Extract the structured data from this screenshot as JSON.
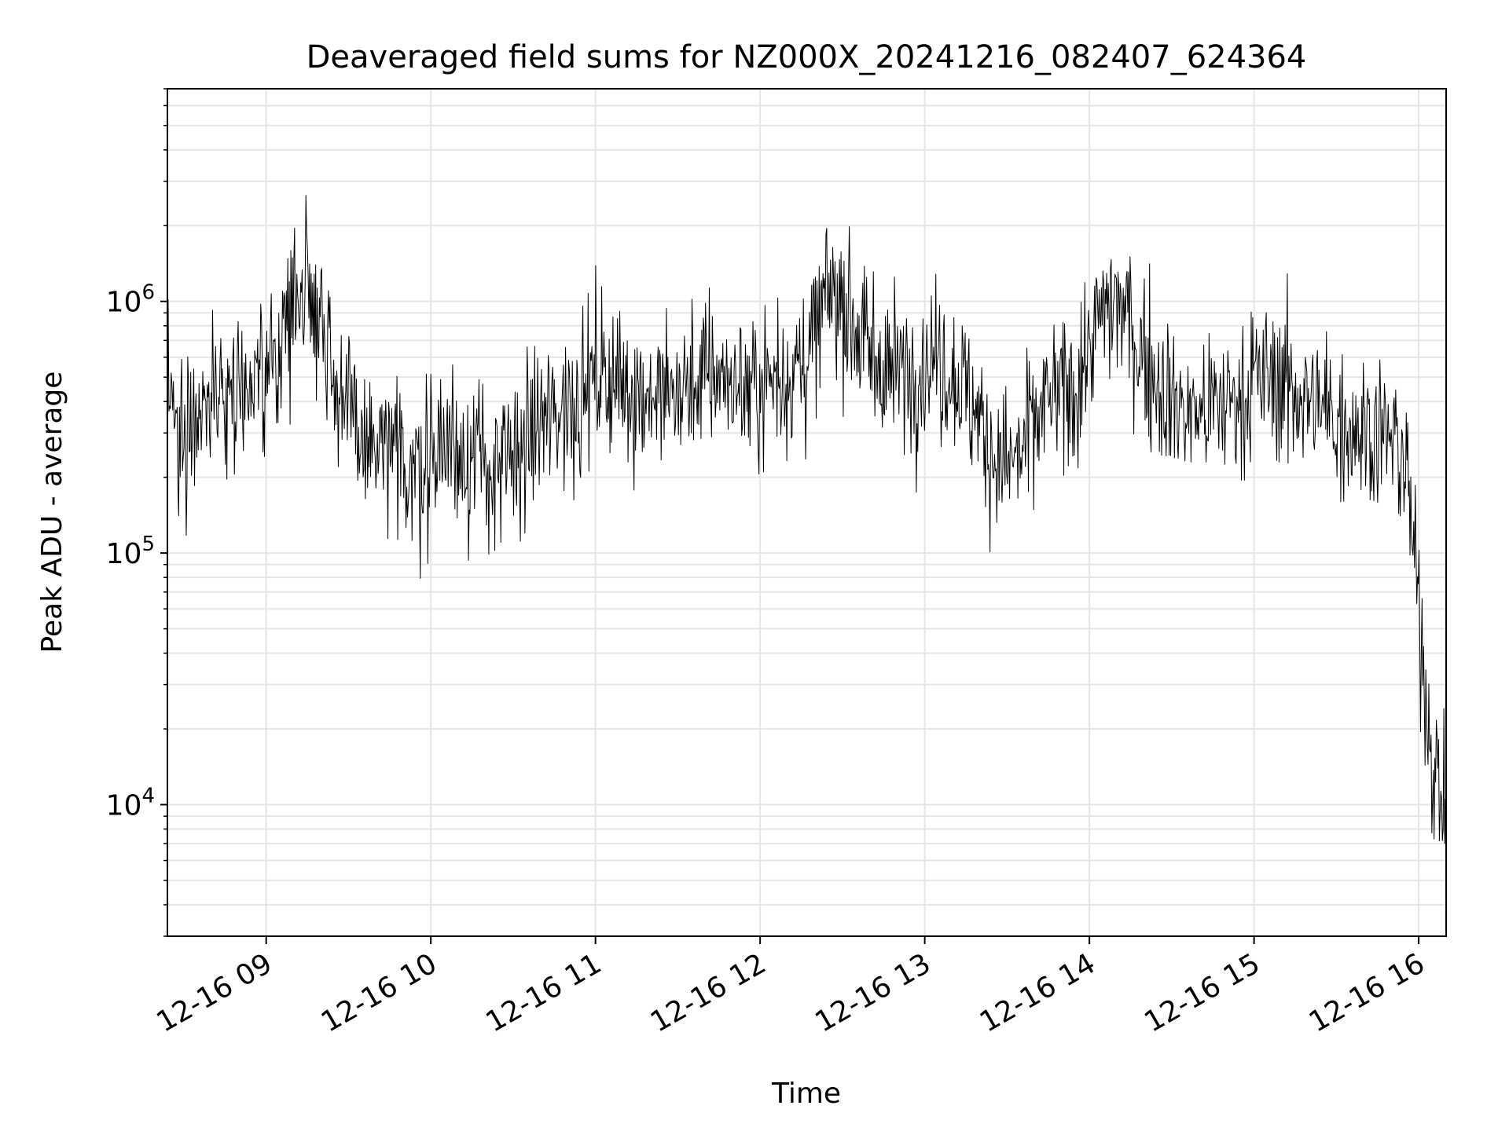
{
  "chart_data": {
    "type": "line",
    "title": "Deaveraged field sums for NZ000X_20241216_082407_624364",
    "xlabel": "Time",
    "ylabel": "Peak ADU - average",
    "yscale": "log",
    "ylim": [
      3000,
      7000000
    ],
    "xlim": [
      "2024-12-16 08:24",
      "2024-12-16 16:10"
    ],
    "grid": true,
    "line_color": "#000000",
    "grid_color": "#e6e6e6",
    "x_ticks": [
      {
        "value": "2024-12-16 09:00",
        "label": "12-16 09"
      },
      {
        "value": "2024-12-16 10:00",
        "label": "12-16 10"
      },
      {
        "value": "2024-12-16 11:00",
        "label": "12-16 11"
      },
      {
        "value": "2024-12-16 12:00",
        "label": "12-16 12"
      },
      {
        "value": "2024-12-16 13:00",
        "label": "12-16 13"
      },
      {
        "value": "2024-12-16 14:00",
        "label": "12-16 14"
      },
      {
        "value": "2024-12-16 15:00",
        "label": "12-16 15"
      },
      {
        "value": "2024-12-16 16:00",
        "label": "12-16 16"
      }
    ],
    "y_ticks": [
      {
        "value": 10000,
        "base": "10",
        "exp": "4"
      },
      {
        "value": 100000,
        "base": "10",
        "exp": "5"
      },
      {
        "value": 1000000,
        "base": "10",
        "exp": "6"
      }
    ],
    "series": [
      {
        "x": [
          "2024-12-16 08:24",
          "2024-12-16 08:30",
          "2024-12-16 08:35",
          "2024-12-16 08:40",
          "2024-12-16 08:45",
          "2024-12-16 08:50",
          "2024-12-16 08:55",
          "2024-12-16 09:00",
          "2024-12-16 09:05",
          "2024-12-16 09:10",
          "2024-12-16 09:15",
          "2024-12-16 09:20",
          "2024-12-16 09:25",
          "2024-12-16 09:30",
          "2024-12-16 09:35",
          "2024-12-16 09:40",
          "2024-12-16 09:45",
          "2024-12-16 09:50",
          "2024-12-16 09:55",
          "2024-12-16 10:00",
          "2024-12-16 10:05",
          "2024-12-16 10:10",
          "2024-12-16 10:15",
          "2024-12-16 10:20",
          "2024-12-16 10:25",
          "2024-12-16 10:30",
          "2024-12-16 10:35",
          "2024-12-16 10:40",
          "2024-12-16 10:45",
          "2024-12-16 10:50",
          "2024-12-16 10:55",
          "2024-12-16 11:00",
          "2024-12-16 11:05",
          "2024-12-16 11:10",
          "2024-12-16 11:15",
          "2024-12-16 11:20",
          "2024-12-16 11:25",
          "2024-12-16 11:30",
          "2024-12-16 11:35",
          "2024-12-16 11:40",
          "2024-12-16 11:45",
          "2024-12-16 11:50",
          "2024-12-16 11:55",
          "2024-12-16 12:00",
          "2024-12-16 12:05",
          "2024-12-16 12:10",
          "2024-12-16 12:15",
          "2024-12-16 12:20",
          "2024-12-16 12:25",
          "2024-12-16 12:30",
          "2024-12-16 12:35",
          "2024-12-16 12:40",
          "2024-12-16 12:45",
          "2024-12-16 12:50",
          "2024-12-16 12:55",
          "2024-12-16 13:00",
          "2024-12-16 13:05",
          "2024-12-16 13:10",
          "2024-12-16 13:15",
          "2024-12-16 13:20",
          "2024-12-16 13:25",
          "2024-12-16 13:30",
          "2024-12-16 13:35",
          "2024-12-16 13:40",
          "2024-12-16 13:45",
          "2024-12-16 13:50",
          "2024-12-16 13:55",
          "2024-12-16 14:00",
          "2024-12-16 14:05",
          "2024-12-16 14:10",
          "2024-12-16 14:15",
          "2024-12-16 14:20",
          "2024-12-16 14:25",
          "2024-12-16 14:30",
          "2024-12-16 14:35",
          "2024-12-16 14:40",
          "2024-12-16 14:45",
          "2024-12-16 14:50",
          "2024-12-16 14:55",
          "2024-12-16 15:00",
          "2024-12-16 15:05",
          "2024-12-16 15:10",
          "2024-12-16 15:15",
          "2024-12-16 15:20",
          "2024-12-16 15:25",
          "2024-12-16 15:30",
          "2024-12-16 15:35",
          "2024-12-16 15:40",
          "2024-12-16 15:45",
          "2024-12-16 15:50",
          "2024-12-16 15:55",
          "2024-12-16 16:00",
          "2024-12-16 16:05",
          "2024-12-16 16:10"
        ],
        "y": [
          400000,
          300000,
          380000,
          420000,
          450000,
          500000,
          420000,
          480000,
          700000,
          1000000,
          1300000,
          900000,
          500000,
          350000,
          280000,
          250000,
          240000,
          230000,
          210000,
          250000,
          280000,
          260000,
          240000,
          220000,
          210000,
          230000,
          280000,
          330000,
          350000,
          400000,
          420000,
          520000,
          500000,
          460000,
          450000,
          430000,
          420000,
          430000,
          470000,
          500000,
          520000,
          480000,
          440000,
          460000,
          500000,
          520000,
          550000,
          700000,
          1100000,
          1000000,
          800000,
          600000,
          550000,
          520000,
          540000,
          560000,
          600000,
          520000,
          450000,
          330000,
          250000,
          220000,
          250000,
          320000,
          400000,
          420000,
          450000,
          650000,
          900000,
          1000000,
          800000,
          600000,
          480000,
          400000,
          370000,
          360000,
          380000,
          400000,
          420000,
          480000,
          500000,
          470000,
          440000,
          400000,
          370000,
          340000,
          330000,
          320000,
          300000,
          280000,
          240000,
          60000,
          15000,
          9000
        ]
      }
    ]
  }
}
